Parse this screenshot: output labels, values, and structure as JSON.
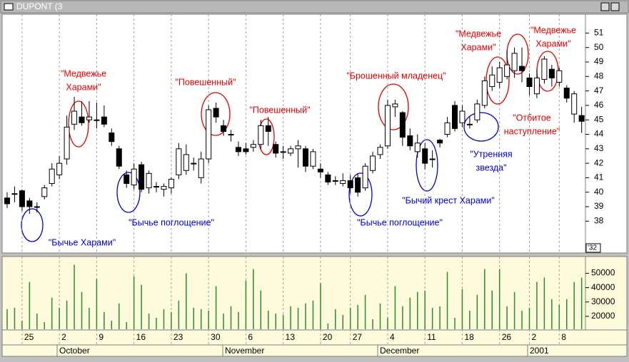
{
  "chart_data": [
    {
      "type": "candlestick",
      "title": "DUPONT (3",
      "corner_label": "'32",
      "categories": [
        null,
        null,
        "25",
        null,
        null,
        null,
        null,
        "2",
        null,
        null,
        null,
        null,
        "9",
        null,
        null,
        null,
        null,
        "16",
        null,
        null,
        null,
        null,
        "23",
        null,
        null,
        null,
        null,
        "30",
        null,
        null,
        null,
        null,
        "6",
        null,
        null,
        null,
        null,
        "13",
        null,
        null,
        null,
        null,
        "20",
        null,
        null,
        null,
        "27",
        null,
        null,
        null,
        null,
        "4",
        null,
        null,
        null,
        null,
        "11",
        null,
        null,
        null,
        null,
        "18",
        null,
        null,
        null,
        null,
        "26",
        null,
        null,
        null,
        "2",
        null,
        null,
        null,
        "8",
        null,
        null,
        null
      ],
      "open": [
        39.6,
        39.9,
        40.1,
        39.4,
        39.0,
        39.7,
        40.6,
        41.2,
        42.3,
        44.7,
        45.2,
        45.0,
        45.0,
        45.2,
        44.1,
        43.0,
        41.2,
        40.5,
        41.9,
        40.3,
        40.4,
        40.2,
        40.3,
        41.2,
        41.5,
        42.0,
        41.0,
        42.3,
        45.8,
        44.6,
        44.0,
        43.1,
        43.0,
        43.1,
        43.3,
        44.6,
        43.3,
        42.8,
        42.7,
        43.0,
        43.0,
        41.8,
        41.6,
        41.2,
        40.8,
        40.6,
        40.8,
        41.0,
        40.3,
        41.5,
        42.6,
        43.2,
        45.9,
        45.5,
        43.9,
        42.8,
        43.0,
        42.3,
        43.6,
        44.0,
        46.0,
        44.8,
        44.7,
        45.0,
        46.0,
        47.3,
        47.6,
        48.0,
        48.4,
        48.7,
        47.9,
        46.8,
        47.8,
        48.5,
        47.6,
        47.2,
        45.4,
        45.3
      ],
      "high": [
        40.0,
        40.4,
        40.2,
        39.6,
        39.3,
        40.5,
        42.0,
        42.5,
        45.3,
        46.6,
        46.3,
        46.3,
        46.2,
        46.0,
        44.4,
        43.2,
        41.5,
        42.0,
        42.1,
        41.5,
        40.7,
        40.6,
        41.0,
        43.4,
        43.3,
        42.4,
        42.8,
        46.0,
        46.2,
        45.0,
        44.3,
        43.5,
        43.4,
        43.6,
        45.0,
        45.2,
        43.5,
        43.2,
        43.2,
        43.6,
        43.2,
        43.0,
        42.0,
        41.4,
        41.1,
        41.3,
        41.2,
        41.3,
        42.0,
        42.8,
        43.3,
        46.4,
        46.4,
        45.6,
        44.4,
        44.0,
        43.4,
        42.9,
        43.7,
        45.2,
        46.3,
        46.0,
        45.2,
        46.4,
        48.0,
        48.7,
        49.0,
        49.8,
        50.0,
        50.0,
        48.2,
        48.5,
        49.4,
        48.8,
        48.6,
        47.4,
        47.0,
        45.9
      ],
      "low": [
        38.9,
        39.3,
        38.7,
        38.5,
        38.6,
        39.5,
        40.4,
        40.9,
        41.9,
        44.3,
        44.6,
        44.8,
        44.4,
        44.5,
        43.2,
        41.6,
        40.3,
        40.2,
        40.0,
        39.9,
        40.0,
        39.7,
        39.9,
        40.9,
        41.2,
        41.5,
        40.6,
        42.0,
        44.8,
        43.9,
        43.5,
        42.5,
        42.6,
        42.8,
        43.0,
        43.2,
        42.4,
        42.3,
        42.5,
        41.7,
        41.4,
        41.6,
        41.0,
        40.5,
        40.5,
        40.4,
        39.9,
        39.7,
        40.1,
        41.3,
        42.3,
        43.0,
        45.2,
        43.2,
        42.9,
        42.4,
        41.6,
        41.7,
        43.1,
        43.8,
        44.2,
        44.5,
        44.4,
        44.8,
        45.8,
        47.0,
        47.2,
        47.8,
        47.9,
        47.6,
        46.7,
        46.5,
        47.5,
        47.3,
        47.3,
        46.2,
        44.8,
        44.1
      ],
      "close": [
        39.2,
        39.9,
        39.0,
        39.0,
        39.0,
        40.3,
        41.6,
        42.0,
        44.5,
        45.6,
        44.8,
        45.2,
        45.0,
        44.7,
        43.5,
        41.8,
        40.6,
        41.6,
        40.2,
        41.3,
        40.4,
        40.4,
        40.9,
        43.0,
        42.6,
        42.0,
        42.3,
        45.7,
        45.2,
        44.2,
        44.0,
        42.8,
        42.8,
        43.3,
        44.6,
        44.2,
        42.7,
        42.8,
        43.0,
        43.2,
        41.8,
        42.8,
        41.4,
        40.7,
        40.8,
        40.8,
        40.3,
        40.0,
        41.8,
        42.5,
        43.1,
        46.0,
        46.1,
        43.8,
        43.2,
        43.4,
        42.0,
        42.3,
        43.4,
        44.8,
        44.4,
        45.6,
        44.7,
        46.1,
        47.7,
        48.1,
        48.6,
        48.8,
        49.6,
        48.4,
        47.3,
        47.9,
        49.2,
        47.9,
        48.4,
        46.5,
        46.8,
        44.9
      ],
      "up_color": "#ffffff",
      "down_color": "#000000",
      "ylim": [
        35.8,
        52.3
      ],
      "yticks": [
        38,
        39,
        40,
        41,
        42,
        43,
        44,
        45,
        46,
        47,
        48,
        49,
        50,
        51
      ],
      "annotations": [
        {
          "lines": [
            "\"Медвежье",
            "Харами\""
          ],
          "color": "#e00000"
        },
        {
          "lines": [
            "\"Бычье Харами\""
          ],
          "color": "#0000cc"
        },
        {
          "lines": [
            "\"Бычье поглощение\""
          ],
          "color": "#0000cc"
        },
        {
          "lines": [
            "\"Повешенный\""
          ],
          "color": "#e00000"
        },
        {
          "lines": [
            "\"Повешенный\""
          ],
          "color": "#e00000"
        },
        {
          "lines": [
            "\"Брошенный младенец\""
          ],
          "color": "#e00000"
        },
        {
          "lines": [
            "\"Бычье поглощение\""
          ],
          "color": "#0000cc"
        },
        {
          "lines": [
            "\"Бычий крест Харами\""
          ],
          "color": "#0000cc"
        },
        {
          "lines": [
            "\"Утренняя",
            "звезда\""
          ],
          "color": "#0000cc"
        },
        {
          "lines": [
            "\"Медвежье",
            "Харами\""
          ],
          "color": "#e00000"
        },
        {
          "lines": [
            "\"Отбитое",
            "наступление\""
          ],
          "color": "#e00000"
        },
        {
          "lines": [
            "\"Медвежье",
            "Харами\""
          ],
          "color": "#e00000"
        }
      ]
    },
    {
      "type": "bar",
      "color": "#2e8b2e",
      "categories": [
        null,
        null,
        "25",
        null,
        null,
        null,
        null,
        "2",
        null,
        null,
        null,
        null,
        "9",
        null,
        null,
        null,
        null,
        "16",
        null,
        null,
        null,
        null,
        "23",
        null,
        null,
        null,
        null,
        "30",
        null,
        null,
        null,
        null,
        "6",
        null,
        null,
        null,
        null,
        "13",
        null,
        null,
        null,
        null,
        "20",
        null,
        null,
        null,
        "27",
        null,
        null,
        null,
        null,
        "4",
        null,
        null,
        null,
        null,
        "11",
        null,
        null,
        null,
        null,
        "18",
        null,
        null,
        null,
        null,
        "26",
        null,
        null,
        null,
        "2",
        null,
        null,
        null,
        "8",
        null,
        null,
        null
      ],
      "months": [
        "October",
        "November",
        "December",
        "2001"
      ],
      "values": [
        25000,
        26000,
        17000,
        44000,
        22000,
        16000,
        33000,
        26000,
        31000,
        56000,
        37000,
        26000,
        46000,
        23000,
        17000,
        29000,
        16000,
        48000,
        42000,
        22000,
        19000,
        25000,
        23000,
        31000,
        50000,
        26000,
        25000,
        24000,
        41000,
        22000,
        27000,
        23000,
        45000,
        53000,
        38000,
        24000,
        22000,
        21000,
        27000,
        26000,
        29000,
        31000,
        43000,
        15000,
        25000,
        21000,
        26000,
        28000,
        35000,
        18000,
        29000,
        19000,
        41000,
        27000,
        33000,
        37000,
        38000,
        26000,
        27000,
        51000,
        19000,
        39000,
        24000,
        35000,
        53000,
        38000,
        53000,
        27000,
        37000,
        24000,
        26000,
        44000,
        47000,
        32000,
        28000,
        32000,
        44000,
        47000
      ],
      "ylim": [
        11000,
        61700
      ],
      "yticks": [
        20000,
        30000,
        40000,
        50000
      ]
    }
  ]
}
